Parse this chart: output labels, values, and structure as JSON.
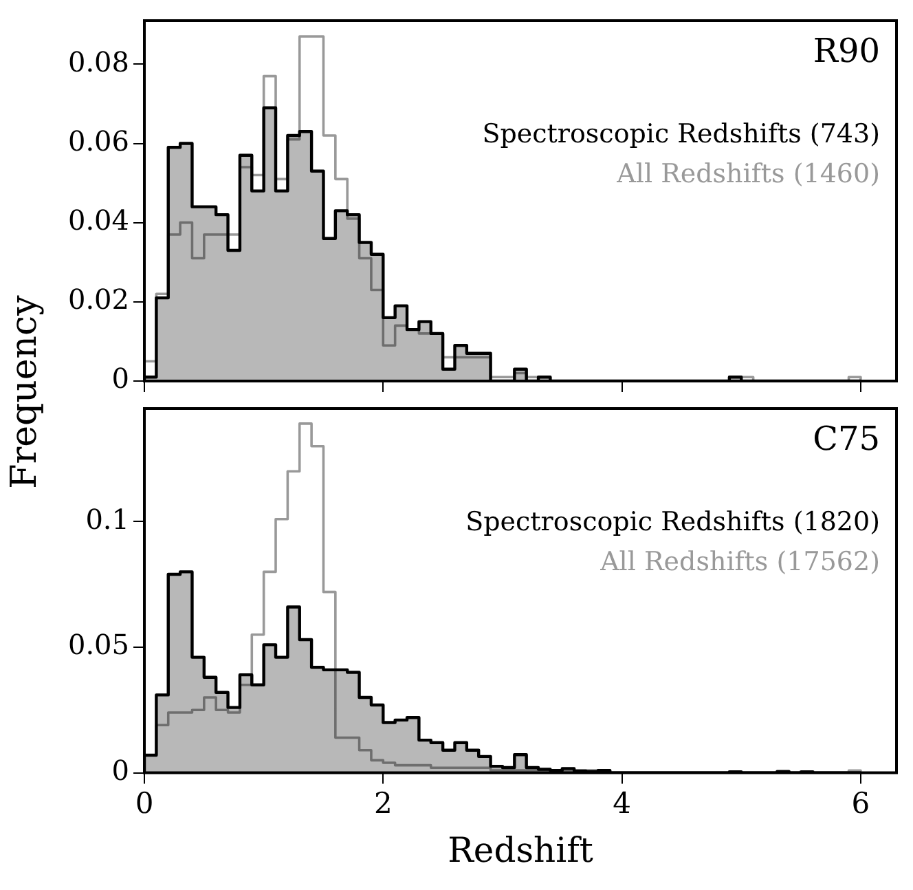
{
  "chart_data": [
    {
      "type": "histogram",
      "title": "R90",
      "ylabel": "Frequency",
      "legend": "top right",
      "tick_labels": "y",
      "bins": [
        0,
        0.1,
        0.2,
        0.3,
        0.4,
        0.5,
        0.6,
        0.7,
        0.8,
        0.9,
        1,
        1.1,
        1.2,
        1.3,
        1.4,
        1.5,
        1.6,
        1.7,
        1.8,
        1.9,
        2,
        2.1,
        2.2,
        2.3,
        2.4,
        2.5,
        2.6,
        2.7,
        2.8,
        2.9,
        3,
        3.1,
        3.2,
        3.3,
        3.4,
        3.5,
        3.6,
        3.7,
        3.8,
        3.9,
        4,
        4.1,
        4.2,
        4.3,
        4.4,
        4.5,
        4.6,
        4.7,
        4.8,
        4.9,
        5,
        5.1,
        5.2,
        5.3,
        5.4,
        5.5,
        5.6,
        5.7,
        5.8,
        5.9,
        6
      ],
      "series": [
        {
          "name": "Spectroscopic Redshifts (743)",
          "color": "#000000",
          "values": [
            0.001,
            0.021,
            0.059,
            0.06,
            0.044,
            0.044,
            0.042,
            0.033,
            0.057,
            0.048,
            0.069,
            0.048,
            0.062,
            0.063,
            0.053,
            0.036,
            0.043,
            0.042,
            0.035,
            0.032,
            0.016,
            0.019,
            0.013,
            0.015,
            0.012,
            0.003,
            0.009,
            0.007,
            0.007,
            0,
            0,
            0.003,
            0,
            0.001,
            0,
            0,
            0,
            0,
            0,
            0,
            0,
            0,
            0,
            0,
            0,
            0,
            0,
            0,
            0,
            0.001,
            0,
            0,
            0,
            0,
            0,
            0,
            0,
            0,
            0,
            0
          ]
        },
        {
          "name": "All Redshifts (1460)",
          "color": "#999999",
          "values": [
            0.005,
            0.022,
            0.037,
            0.04,
            0.031,
            0.037,
            0.037,
            0.037,
            0.054,
            0.052,
            0.077,
            0.051,
            0.061,
            0.087,
            0.087,
            0.062,
            0.051,
            0.041,
            0.031,
            0.023,
            0.009,
            0.014,
            0.013,
            0.012,
            0.012,
            0.006,
            0.006,
            0.006,
            0.006,
            0.001,
            0.001,
            0.002,
            0.001,
            0.001,
            0,
            0,
            0,
            0,
            0,
            0,
            0,
            0,
            0,
            0,
            0,
            0,
            0,
            0,
            0,
            0.001,
            0.001,
            0,
            0,
            0,
            0,
            0,
            0,
            0,
            0,
            0.001
          ]
        }
      ],
      "xlim": [
        0,
        6.3
      ],
      "xticks": [
        0,
        2,
        4,
        6
      ],
      "ylim": [
        0,
        0.091
      ],
      "yticks": [
        0,
        0.02,
        0.04,
        0.06,
        0.08
      ]
    },
    {
      "type": "histogram",
      "title": "C75",
      "xlabel": "Redshift",
      "legend": "top right",
      "bins": [
        0,
        0.1,
        0.2,
        0.3,
        0.4,
        0.5,
        0.6,
        0.7,
        0.8,
        0.9,
        1,
        1.1,
        1.2,
        1.3,
        1.4,
        1.5,
        1.6,
        1.7,
        1.8,
        1.9,
        2,
        2.1,
        2.2,
        2.3,
        2.4,
        2.5,
        2.6,
        2.7,
        2.8,
        2.9,
        3,
        3.1,
        3.2,
        3.3,
        3.4,
        3.5,
        3.6,
        3.7,
        3.8,
        3.9,
        4,
        4.1,
        4.2,
        4.3,
        4.4,
        4.5,
        4.6,
        4.7,
        4.8,
        4.9,
        5,
        5.1,
        5.2,
        5.3,
        5.4,
        5.5,
        5.6,
        5.7,
        5.8,
        5.9,
        6
      ],
      "series": [
        {
          "name": "Spectroscopic Redshifts (1820)",
          "color": "#000000",
          "values": [
            0.007,
            0.031,
            0.079,
            0.08,
            0.046,
            0.038,
            0.032,
            0.026,
            0.039,
            0.035,
            0.051,
            0.046,
            0.066,
            0.053,
            0.042,
            0.041,
            0.041,
            0.04,
            0.03,
            0.027,
            0.02,
            0.021,
            0.022,
            0.013,
            0.012,
            0.009,
            0.012,
            0.009,
            0.0065,
            0.0026,
            0.0021,
            0.0072,
            0.0021,
            0.0014,
            0.0009,
            0.0017,
            0.0007,
            0.0005,
            0.0009,
            0,
            0,
            0,
            0,
            0,
            0,
            0,
            0,
            0,
            0,
            0.0004,
            0,
            0,
            0,
            0.0005,
            0,
            0.0004,
            0,
            0,
            0,
            0
          ]
        },
        {
          "name": "All Redshifts (17562)",
          "color": "#999999",
          "values": [
            0.007,
            0.019,
            0.024,
            0.024,
            0.025,
            0.03,
            0.025,
            0.024,
            0.035,
            0.055,
            0.08,
            0.101,
            0.12,
            0.139,
            0.13,
            0.072,
            0.014,
            0.014,
            0.009,
            0.005,
            0.004,
            0.003,
            0.003,
            0.003,
            0.002,
            0.002,
            0.002,
            0.002,
            0.002,
            0.001,
            0.001,
            0.001,
            0.001,
            0.001,
            0.001,
            0.001,
            0.001,
            0.001,
            0.001,
            0,
            0,
            0,
            0,
            0,
            0,
            0,
            0,
            0,
            0,
            0,
            0,
            0,
            0,
            0,
            0,
            0,
            0,
            0,
            0,
            0.0009
          ]
        }
      ],
      "xlim": [
        0,
        6.3
      ],
      "xticks": [
        0,
        2,
        4,
        6
      ],
      "ylim": [
        0,
        0.145
      ],
      "yticks": [
        0,
        0.05,
        0.1
      ]
    }
  ]
}
